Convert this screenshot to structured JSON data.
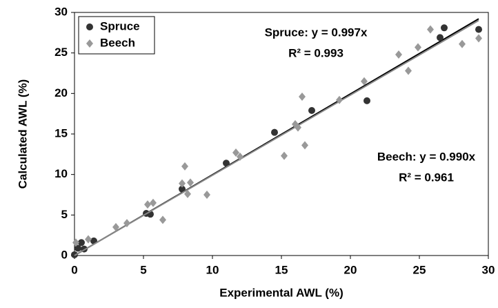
{
  "chart_data": {
    "type": "scatter",
    "xlabel": "Experimental AWL (%)",
    "ylabel": "Calculated AWL (%)",
    "xlim": [
      0,
      30
    ],
    "ylim": [
      0,
      30
    ],
    "xticks": [
      0,
      5,
      10,
      15,
      20,
      25,
      30
    ],
    "yticks": [
      0,
      5,
      10,
      15,
      20,
      25,
      30
    ],
    "legend": "top-left",
    "series": [
      {
        "name": "Spruce",
        "color": "#333333",
        "marker": "circle",
        "slope": 0.997,
        "annotation": [
          "Spruce: y = 0.997x",
          "R² = 0.993"
        ],
        "x": [
          0,
          0.25,
          0.5,
          0.7,
          1.4,
          5.2,
          5.5,
          7.8,
          11.0,
          14.5,
          17.2,
          21.2,
          26.5,
          26.8,
          29.3
        ],
        "values": [
          0.1,
          0.9,
          1.6,
          0.8,
          1.8,
          5.2,
          5.1,
          8.2,
          11.4,
          15.2,
          17.9,
          19.1,
          26.9,
          28.1,
          27.9
        ]
      },
      {
        "name": "Beech",
        "color": "#999999",
        "marker": "diamond",
        "slope": 0.99,
        "annotation": [
          "Beech: y = 0.990x",
          "R² = 0.961"
        ],
        "x": [
          0.1,
          1.0,
          3.0,
          3.8,
          5.3,
          5.7,
          6.4,
          7.8,
          8.0,
          8.2,
          8.4,
          9.6,
          11.7,
          12.0,
          15.2,
          16.0,
          16.2,
          16.5,
          16.7,
          19.2,
          21.0,
          23.5,
          24.2,
          24.9,
          25.8,
          28.1,
          29.3
        ],
        "values": [
          1.6,
          2.0,
          3.5,
          4.0,
          6.3,
          6.5,
          4.4,
          8.9,
          11.0,
          7.6,
          9.0,
          7.5,
          12.7,
          12.2,
          12.3,
          16.2,
          15.8,
          19.6,
          13.6,
          19.2,
          21.5,
          24.8,
          22.8,
          25.7,
          27.9,
          26.1,
          26.8
        ]
      }
    ]
  }
}
